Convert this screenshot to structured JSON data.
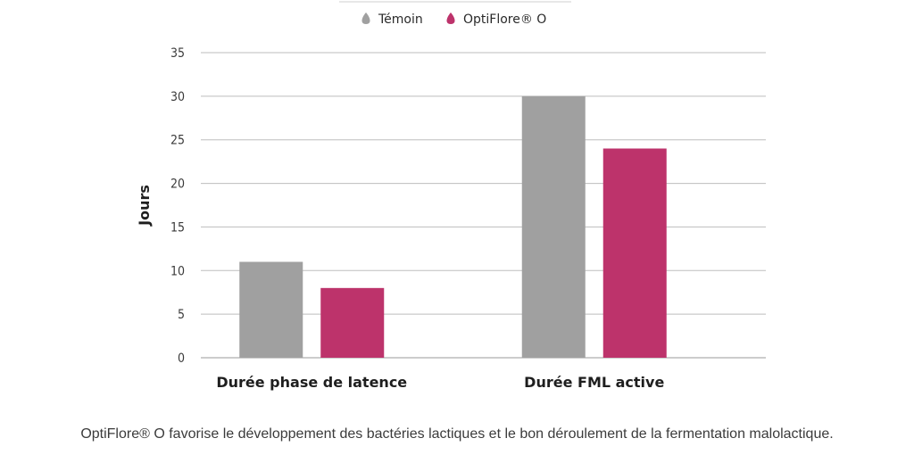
{
  "chart_data": {
    "type": "bar",
    "categories": [
      "Durée phase de latence",
      "Durée FML active"
    ],
    "series": [
      {
        "name": "Témoin",
        "values": [
          11,
          30
        ],
        "color": "#a0a0a0"
      },
      {
        "name": "OptiFlore® O",
        "values": [
          8,
          24
        ],
        "color": "#bd336b"
      }
    ],
    "ylabel": "Jours",
    "ylim": [
      0,
      35
    ],
    "yticks": [
      0,
      5,
      10,
      15,
      20,
      25,
      30,
      35
    ],
    "grid": true,
    "legend_position": "top-center",
    "legend_marker": "drop-icon"
  },
  "caption": "OptiFlore® O favorise le développement des bactéries lactiques et le bon déroulement de la fermentation malolactique."
}
